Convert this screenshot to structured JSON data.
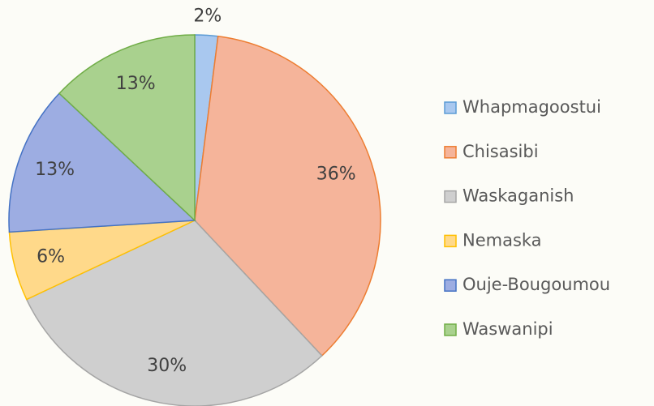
{
  "chart_data": {
    "type": "pie",
    "categories": [
      "Whapmagoostui",
      "Chisasibi",
      "Waskaganish",
      "Nemaska",
      "Ouje-Bougoumou",
      "Waswanipi"
    ],
    "values": [
      2,
      36,
      30,
      6,
      13,
      13
    ],
    "value_labels": [
      "2%",
      "36%",
      "30%",
      "6%",
      "13%",
      "13%"
    ],
    "colors": [
      "#a9c8ef",
      "#f5b49a",
      "#cfcfcf",
      "#ffd98a",
      "#9dade2",
      "#a9d18e"
    ],
    "edge_colors": [
      "#5b9bd5",
      "#ed7d31",
      "#a5a5a5",
      "#ffc000",
      "#4472c4",
      "#70ad47"
    ],
    "legend": "right"
  }
}
